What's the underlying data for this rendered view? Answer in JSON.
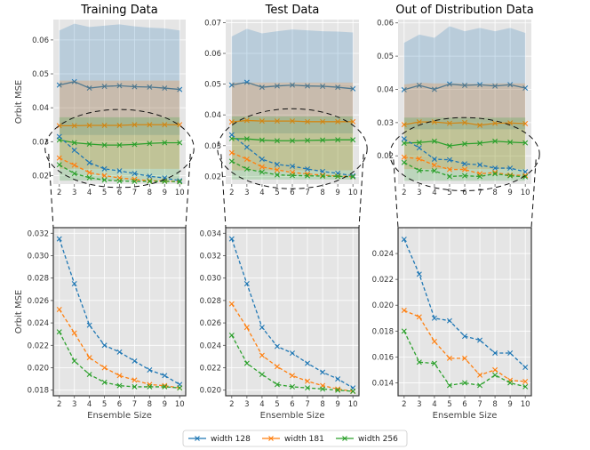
{
  "colors": {
    "width128": "#1f77b4",
    "width181": "#ff7f0e",
    "width256": "#2ca02c",
    "panel_bg": "#e5e5e5",
    "grid": "#ffffff"
  },
  "legend": [
    "width 128",
    "width 181",
    "width 256"
  ],
  "chart_data": [
    {
      "type": "line",
      "title": "Training Data",
      "ylabel": "Orbit MSE",
      "x": [
        2,
        3,
        4,
        5,
        6,
        7,
        8,
        9,
        10
      ],
      "ylim": [
        0.0175,
        0.066
      ],
      "yticks": [
        0.02,
        0.03,
        0.04,
        0.05,
        0.06
      ],
      "yticklabels": [
        "0.02",
        "0.03",
        "0.04",
        "0.05",
        "0.06"
      ],
      "zoom_ellipse": {
        "x": [
          2,
          10
        ],
        "y": [
          0.0165,
          0.0395
        ]
      },
      "series": [
        {
          "name": "width 128",
          "style": "solid",
          "values": [
            0.0467,
            0.0477,
            0.0458,
            0.0463,
            0.0465,
            0.0462,
            0.0461,
            0.0458,
            0.0454
          ],
          "band_low": [
            0.032,
            0.032,
            0.032,
            0.032,
            0.032,
            0.032,
            0.032,
            0.032,
            0.032
          ],
          "band_high": [
            0.0628,
            0.0648,
            0.0638,
            0.0642,
            0.0646,
            0.064,
            0.0636,
            0.0634,
            0.0628
          ]
        },
        {
          "name": "width 181",
          "style": "solid",
          "values": [
            0.0347,
            0.0347,
            0.0348,
            0.0348,
            0.0348,
            0.035,
            0.035,
            0.035,
            0.035
          ],
          "band_low": [
            0.022,
            0.022,
            0.022,
            0.022,
            0.022,
            0.022,
            0.022,
            0.022,
            0.022
          ],
          "band_high": [
            0.048,
            0.048,
            0.048,
            0.048,
            0.048,
            0.048,
            0.048,
            0.048,
            0.048
          ]
        },
        {
          "name": "width 256",
          "style": "solid",
          "values": [
            0.0305,
            0.0297,
            0.0293,
            0.029,
            0.029,
            0.0292,
            0.0295,
            0.0297,
            0.0297
          ],
          "band_low": [
            0.0185,
            0.0185,
            0.0185,
            0.0185,
            0.0185,
            0.0185,
            0.0185,
            0.0185,
            0.0185
          ],
          "band_high": [
            0.0372,
            0.0372,
            0.0372,
            0.0372,
            0.0372,
            0.0372,
            0.0372,
            0.0372,
            0.0372
          ]
        },
        {
          "name": "width 128",
          "style": "dashed",
          "values": [
            0.0315,
            0.0275,
            0.0238,
            0.022,
            0.0214,
            0.0206,
            0.0198,
            0.0193,
            0.0185
          ]
        },
        {
          "name": "width 181",
          "style": "dashed",
          "values": [
            0.0252,
            0.0231,
            0.0209,
            0.02,
            0.0193,
            0.0189,
            0.0185,
            0.0184,
            0.0182
          ]
        },
        {
          "name": "width 256",
          "style": "dashed",
          "values": [
            0.0232,
            0.0206,
            0.0194,
            0.0187,
            0.0184,
            0.0183,
            0.0183,
            0.0183,
            0.0182
          ]
        }
      ]
    },
    {
      "type": "line",
      "title": "Test Data",
      "ylabel": "",
      "x": [
        2,
        3,
        4,
        5,
        6,
        7,
        8,
        9,
        10
      ],
      "ylim": [
        0.0175,
        0.071
      ],
      "yticks": [
        0.02,
        0.03,
        0.04,
        0.05,
        0.06,
        0.07
      ],
      "yticklabels": [
        "0.02",
        "0.03",
        "0.04",
        "0.05",
        "0.06",
        "0.07"
      ],
      "zoom_ellipse": {
        "x": [
          2,
          10
        ],
        "y": [
          0.016,
          0.042
        ]
      },
      "series": [
        {
          "name": "width 128",
          "style": "solid",
          "values": [
            0.0497,
            0.0506,
            0.049,
            0.0494,
            0.0497,
            0.0494,
            0.0493,
            0.049,
            0.0485
          ],
          "band_low": [
            0.034,
            0.034,
            0.034,
            0.034,
            0.034,
            0.034,
            0.034,
            0.034,
            0.034
          ],
          "band_high": [
            0.0655,
            0.068,
            0.0665,
            0.0672,
            0.0678,
            0.0675,
            0.0672,
            0.0671,
            0.0668
          ]
        },
        {
          "name": "width 181",
          "style": "solid",
          "values": [
            0.0377,
            0.0382,
            0.038,
            0.038,
            0.038,
            0.0378,
            0.0378,
            0.0378,
            0.0378
          ],
          "band_low": [
            0.022,
            0.022,
            0.022,
            0.022,
            0.022,
            0.022,
            0.022,
            0.022,
            0.022
          ],
          "band_high": [
            0.0505,
            0.0505,
            0.0505,
            0.0505,
            0.0505,
            0.0505,
            0.0505,
            0.0505,
            0.0505
          ]
        },
        {
          "name": "width 256",
          "style": "solid",
          "values": [
            0.0323,
            0.0322,
            0.0318,
            0.0316,
            0.0316,
            0.0317,
            0.0318,
            0.0319,
            0.0319
          ],
          "band_low": [
            0.019,
            0.019,
            0.019,
            0.019,
            0.019,
            0.019,
            0.019,
            0.019,
            0.019
          ],
          "band_high": [
            0.0395,
            0.0395,
            0.0395,
            0.0395,
            0.0395,
            0.0395,
            0.0395,
            0.0395,
            0.0395
          ]
        },
        {
          "name": "width 128",
          "style": "dashed",
          "values": [
            0.0335,
            0.0295,
            0.0256,
            0.0239,
            0.0233,
            0.0224,
            0.0216,
            0.021,
            0.0202
          ]
        },
        {
          "name": "width 181",
          "style": "dashed",
          "values": [
            0.0277,
            0.0256,
            0.0231,
            0.0221,
            0.0213,
            0.0208,
            0.0204,
            0.0201,
            0.0199
          ]
        },
        {
          "name": "width 256",
          "style": "dashed",
          "values": [
            0.0249,
            0.0224,
            0.0214,
            0.0205,
            0.0203,
            0.0202,
            0.0201,
            0.02,
            0.0199
          ]
        }
      ]
    },
    {
      "type": "line",
      "title": "Out of Distribution Data",
      "ylabel": "",
      "x": [
        2,
        3,
        4,
        5,
        6,
        7,
        8,
        9,
        10
      ],
      "ylim": [
        0.0115,
        0.061
      ],
      "yticks": [
        0.02,
        0.03,
        0.04,
        0.05,
        0.06
      ],
      "yticklabels": [
        "0.02",
        "0.03",
        "0.04",
        "0.05",
        "0.06"
      ],
      "zoom_ellipse": {
        "x": [
          2,
          10
        ],
        "y": [
          0.0095,
          0.0315
        ]
      },
      "series": [
        {
          "name": "width 128",
          "style": "solid",
          "values": [
            0.0399,
            0.0412,
            0.04,
            0.0416,
            0.0412,
            0.0414,
            0.041,
            0.0414,
            0.0404
          ],
          "band_low": [
            0.028,
            0.028,
            0.028,
            0.028,
            0.028,
            0.028,
            0.028,
            0.028,
            0.028
          ],
          "band_high": [
            0.054,
            0.0565,
            0.0555,
            0.059,
            0.0575,
            0.0585,
            0.0575,
            0.0585,
            0.057
          ]
        },
        {
          "name": "width 181",
          "style": "solid",
          "values": [
            0.0294,
            0.0302,
            0.0302,
            0.0298,
            0.03,
            0.0292,
            0.0298,
            0.0299,
            0.0297
          ],
          "band_low": [
            0.016,
            0.016,
            0.016,
            0.016,
            0.016,
            0.016,
            0.016,
            0.016,
            0.016
          ],
          "band_high": [
            0.0415,
            0.042,
            0.0418,
            0.0418,
            0.0418,
            0.0416,
            0.0418,
            0.0418,
            0.0418
          ]
        },
        {
          "name": "width 256",
          "style": "solid",
          "values": [
            0.0238,
            0.024,
            0.0244,
            0.023,
            0.0236,
            0.0238,
            0.0244,
            0.0241,
            0.0239
          ],
          "band_low": [
            0.0125,
            0.0125,
            0.0125,
            0.0125,
            0.0125,
            0.0125,
            0.0125,
            0.0125,
            0.0125
          ],
          "band_high": [
            0.0315,
            0.0315,
            0.0315,
            0.0315,
            0.0315,
            0.0315,
            0.0315,
            0.0315,
            0.0315
          ]
        },
        {
          "name": "width 128",
          "style": "dashed",
          "values": [
            0.0251,
            0.0224,
            0.019,
            0.0188,
            0.0176,
            0.0173,
            0.0163,
            0.0163,
            0.0152
          ]
        },
        {
          "name": "width 181",
          "style": "dashed",
          "values": [
            0.0196,
            0.0191,
            0.0172,
            0.0159,
            0.0159,
            0.0146,
            0.015,
            0.0142,
            0.0141
          ]
        },
        {
          "name": "width 256",
          "style": "dashed",
          "values": [
            0.018,
            0.0156,
            0.0155,
            0.0138,
            0.014,
            0.0138,
            0.0146,
            0.014,
            0.0137
          ]
        }
      ]
    },
    {
      "type": "line",
      "title": "",
      "ylabel": "Orbit MSE",
      "xlabel": "Ensemble Size",
      "x": [
        2,
        3,
        4,
        5,
        6,
        7,
        8,
        9,
        10
      ],
      "ylim": [
        0.0175,
        0.0325
      ],
      "yticks": [
        0.018,
        0.02,
        0.022,
        0.024,
        0.026,
        0.028,
        0.03,
        0.032
      ],
      "yticklabels": [
        "0.018",
        "0.020",
        "0.022",
        "0.024",
        "0.026",
        "0.028",
        "0.030",
        "0.032"
      ],
      "series_ref": "Training Data (dashed)"
    },
    {
      "type": "line",
      "title": "",
      "ylabel": "",
      "xlabel": "Ensemble Size",
      "x": [
        2,
        3,
        4,
        5,
        6,
        7,
        8,
        9,
        10
      ],
      "ylim": [
        0.0195,
        0.0345
      ],
      "yticks": [
        0.02,
        0.022,
        0.024,
        0.026,
        0.028,
        0.03,
        0.032,
        0.034
      ],
      "yticklabels": [
        "0.020",
        "0.022",
        "0.024",
        "0.026",
        "0.028",
        "0.030",
        "0.032",
        "0.034"
      ],
      "series_ref": "Test Data (dashed)"
    },
    {
      "type": "line",
      "title": "",
      "ylabel": "",
      "xlabel": "Ensemble Size",
      "x": [
        2,
        3,
        4,
        5,
        6,
        7,
        8,
        9,
        10
      ],
      "ylim": [
        0.013,
        0.026
      ],
      "yticks": [
        0.014,
        0.016,
        0.018,
        0.02,
        0.022,
        0.024
      ],
      "yticklabels": [
        "0.014",
        "0.016",
        "0.018",
        "0.020",
        "0.022",
        "0.024"
      ],
      "series_ref": "Out of Distribution Data (dashed)"
    }
  ]
}
